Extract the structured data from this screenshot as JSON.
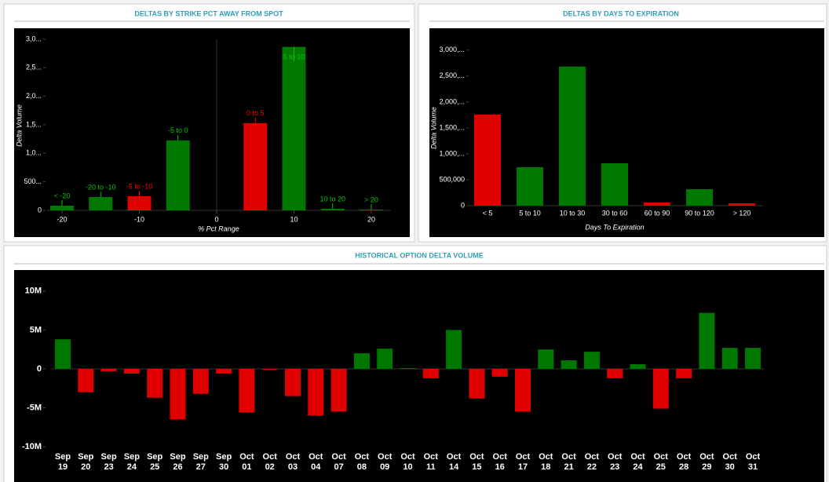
{
  "chart_data": [
    {
      "type": "bar",
      "title": "DELTAS BY STRIKE PCT AWAY FROM SPOT",
      "x_label": "% Pct Range",
      "y_label": "Delta Volume",
      "x": [
        -20,
        -15,
        -10,
        -5,
        5,
        10,
        15,
        20
      ],
      "categories": [
        "< -20",
        "-20 to -10",
        "-5 to -10",
        "-5 to 0",
        "0 to 5",
        "5 to 10",
        "10 to 20",
        "> 20"
      ],
      "values": [
        83000,
        234000,
        248000,
        1226000,
        1529000,
        2865000,
        28000,
        14000
      ],
      "colors": [
        "#007800",
        "#007800",
        "#e00000",
        "#007800",
        "#e00000",
        "#007800",
        "#007800",
        "#007800"
      ],
      "xlim": [
        -22,
        22.5
      ],
      "xticks": [
        -20,
        -10,
        0,
        10,
        20
      ],
      "ylim": [
        0,
        3150000
      ],
      "yticks": [
        0,
        {
          "value": 500000,
          "label": "500..."
        },
        {
          "value": 1000000,
          "label": "1,0..."
        },
        {
          "value": 1500000,
          "label": "1,5..."
        },
        {
          "value": 2000000,
          "label": "2,0..."
        },
        {
          "value": 2500000,
          "label": "2,5..."
        },
        {
          "value": 3000000,
          "label": "3,0..."
        }
      ]
    },
    {
      "type": "bar",
      "title": "DELTAS BY DAYS TO EXPIRATION",
      "x_label": "Days To Expiration",
      "y_label": "Delta Volume",
      "categories": [
        "< 5",
        "5 to 10",
        "10 to 30",
        "30 to 60",
        "60 to 90",
        "90 to 120",
        "> 120"
      ],
      "values": [
        1758000,
        742000,
        2682000,
        818000,
        61000,
        318000,
        45000
      ],
      "colors": [
        "#e00000",
        "#007800",
        "#007800",
        "#007800",
        "#e00000",
        "#007800",
        "#e00000"
      ],
      "ylim": [
        0,
        3300000
      ],
      "yticks": [
        0,
        {
          "value": 500000,
          "label": "500,000"
        },
        {
          "value": 1000000,
          "label": "1,000,..."
        },
        {
          "value": 1500000,
          "label": "1,500,..."
        },
        {
          "value": 2000000,
          "label": "2,000,..."
        },
        {
          "value": 2500000,
          "label": "2,500,..."
        },
        {
          "value": 3000000,
          "label": "3,000,..."
        }
      ]
    },
    {
      "type": "bar",
      "title": "HISTORICAL OPTION DELTA VOLUME",
      "categories": [
        "Sep 19",
        "Sep 20",
        "Sep 23",
        "Sep 24",
        "Sep 25",
        "Sep 26",
        "Sep 27",
        "Sep 30",
        "Oct 01",
        "Oct 02",
        "Oct 03",
        "Oct 04",
        "Oct 07",
        "Oct 08",
        "Oct 09",
        "Oct 10",
        "Oct 11",
        "Oct 14",
        "Oct 15",
        "Oct 16",
        "Oct 17",
        "Oct 18",
        "Oct 21",
        "Oct 22",
        "Oct 23",
        "Oct 24",
        "Oct 25",
        "Oct 28",
        "Oct 29",
        "Oct 30",
        "Oct 31"
      ],
      "values": [
        3800000,
        -3000000,
        -300000,
        -600000,
        -3700000,
        -6500000,
        -3200000,
        -600000,
        -5600000,
        -100000,
        -3500000,
        -6000000,
        -5500000,
        2000000,
        2600000,
        100000,
        -1200000,
        5000000,
        -3800000,
        -1000000,
        -5500000,
        2500000,
        1100000,
        2200000,
        -1200000,
        600000,
        -5100000,
        -1200000,
        7200000,
        2700000,
        2700000
      ],
      "positive_color": "#007800",
      "negative_color": "#e00000",
      "ylim": [
        -11000000,
        12500000
      ],
      "yticks": [
        {
          "value": 10000000,
          "label": "10M"
        },
        {
          "value": 5000000,
          "label": "5M"
        },
        0,
        {
          "value": -5000000,
          "label": "-5M"
        },
        {
          "value": -10000000,
          "label": "-10M"
        }
      ]
    }
  ]
}
